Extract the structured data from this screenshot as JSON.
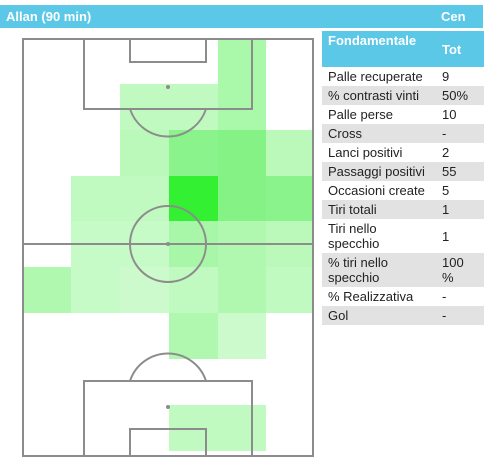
{
  "header": {
    "player": "Allan (90 min)",
    "role": "Cen"
  },
  "pitch": {
    "line_color": "#8c8c8c",
    "heat_color_low": "#8ef58e",
    "heat_color_high": "#33f033"
  },
  "stats": {
    "col_label": "Fondamentale",
    "col_value": "Tot",
    "rows": [
      {
        "label": "Palle recuperate",
        "value": "9"
      },
      {
        "label": "% contrasti vinti",
        "value": "50%"
      },
      {
        "label": "Palle perse",
        "value": "10"
      },
      {
        "label": "Cross",
        "value": "-"
      },
      {
        "label": "Lanci positivi",
        "value": "2"
      },
      {
        "label": "Passaggi positivi",
        "value": "55"
      },
      {
        "label": "Occasioni create",
        "value": "5"
      },
      {
        "label": "Tiri totali",
        "value": "1"
      },
      {
        "label": "Tiri nello specchio",
        "value": "1"
      },
      {
        "label": "% tiri nello specchio",
        "value": "100 %"
      },
      {
        "label": "% Realizzativa",
        "value": "-"
      },
      {
        "label": "Gol",
        "value": "-"
      }
    ]
  }
}
